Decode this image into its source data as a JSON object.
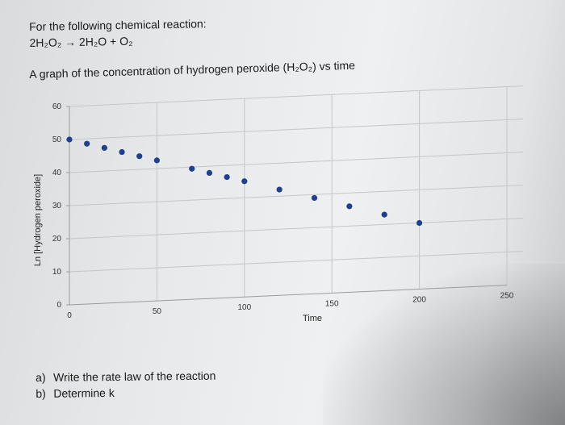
{
  "page": {
    "heading_line1": "For the following chemical reaction:",
    "heading_line2": "2H₂O₂ → 2H₂O + O₂",
    "graph_caption": "A graph of the concentration of hydrogen peroxide (H₂O₂) vs time",
    "question_a_num": "a)",
    "question_a_text": "Write the rate law of the reaction",
    "question_b_num": "b)",
    "question_b_text": "Determine k"
  },
  "chart_data": {
    "type": "scatter",
    "title": "",
    "xlabel": "Time",
    "ylabel": "Ln [Hydrogen peroxide]",
    "xlim": [
      0,
      250
    ],
    "ylim": [
      0,
      60
    ],
    "x_ticks": [
      0,
      50,
      100,
      150,
      200,
      250
    ],
    "y_ticks": [
      0,
      10,
      20,
      30,
      40,
      50,
      60
    ],
    "grid": "major",
    "marker_color": "#1f3f8f",
    "series": [
      {
        "x": [
          0,
          10,
          20,
          30,
          40,
          50,
          70,
          80,
          90,
          100,
          120,
          140,
          160,
          180,
          200
        ],
        "y": [
          50,
          48.5,
          47,
          45.5,
          44,
          42.5,
          39.5,
          38,
          36.5,
          35,
          32,
          29,
          26,
          23,
          20
        ]
      }
    ]
  }
}
